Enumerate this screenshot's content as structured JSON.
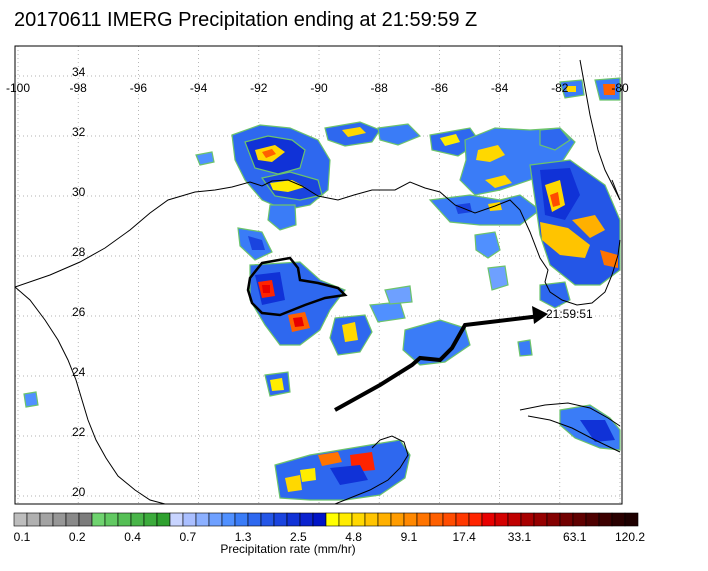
{
  "title": "20170611 IMERG Precipitation ending at 21:59:59 Z",
  "lon_labels": [
    "-100",
    "-98",
    "-96",
    "-94",
    "-92",
    "-90",
    "-88",
    "-86",
    "-84",
    "-82",
    "-80"
  ],
  "lat_labels": [
    "34",
    "32",
    "30",
    "28",
    "26",
    "24",
    "22",
    "20"
  ],
  "track_time_label": "21:59:51",
  "colorbar": {
    "label": "Precipitation rate (mm/hr)",
    "tick_labels": [
      "0.1",
      "0.2",
      "0.4",
      "0.7",
      "1.3",
      "2.5",
      "4.8",
      "9.1",
      "17.4",
      "33.1",
      "63.1",
      "120.2"
    ],
    "colors": [
      "#bdbdbd",
      "#b0b0b0",
      "#a3a3a3",
      "#969696",
      "#898989",
      "#7c7c7c",
      "#6fd36f",
      "#62c962",
      "#55bf55",
      "#49b549",
      "#3cab3c",
      "#2fa12f",
      "#c8d4ff",
      "#aabfff",
      "#8cb0ff",
      "#6ea0ff",
      "#5090ff",
      "#3a7cf7",
      "#2e68ef",
      "#2456e7",
      "#1a44df",
      "#1032d7",
      "#0a22cf",
      "#0014c7",
      "#ffff00",
      "#ffec00",
      "#ffd800",
      "#ffc400",
      "#ffb000",
      "#ff9c00",
      "#ff8800",
      "#ff7400",
      "#ff6000",
      "#ff4c00",
      "#ff3800",
      "#ff2400",
      "#e80000",
      "#d40000",
      "#c00000",
      "#a80000",
      "#960000",
      "#840000",
      "#720000",
      "#600000",
      "#4e0000",
      "#3c0000",
      "#2a0000",
      "#1e0000"
    ]
  }
}
